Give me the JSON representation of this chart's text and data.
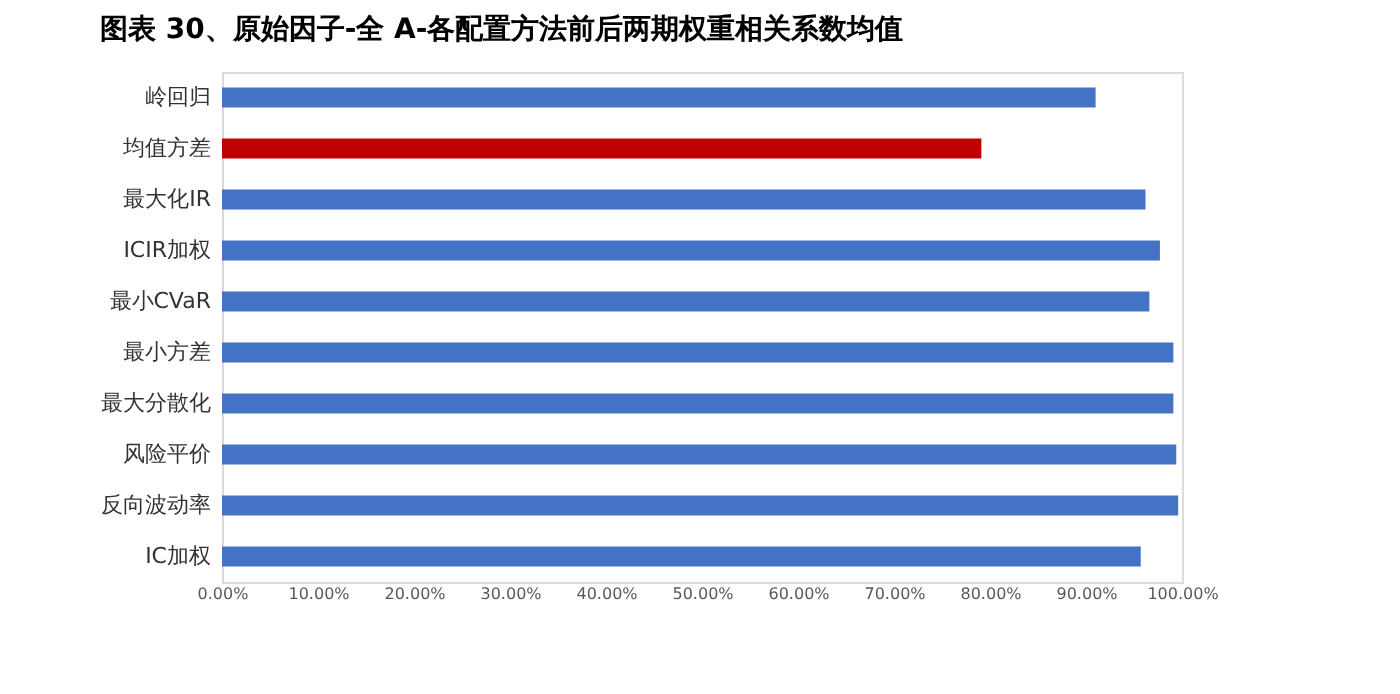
{
  "chart_data": {
    "type": "bar",
    "orientation": "horizontal",
    "title": "图表 30、原始因子-全 A-各配置方法前后两期权重相关系数均值",
    "categories": [
      "岭回归",
      "均值方差",
      "最大化IR",
      "ICIR加权",
      "最小CVaR",
      "最小方差",
      "最大分散化",
      "风险平价",
      "反向波动率",
      "IC加权"
    ],
    "values": [
      0.91,
      0.791,
      0.962,
      0.977,
      0.966,
      0.991,
      0.991,
      0.994,
      0.996,
      0.957
    ],
    "colors": [
      "#4472c4",
      "#c00000",
      "#4472c4",
      "#4472c4",
      "#4472c4",
      "#4472c4",
      "#4472c4",
      "#4472c4",
      "#4472c4",
      "#4472c4"
    ],
    "xlim": [
      0,
      1
    ],
    "xticks": [
      {
        "value": 0,
        "label": "0.00%"
      },
      {
        "value": 0.1,
        "label": "10.00%"
      },
      {
        "value": 0.2,
        "label": "20.00%"
      },
      {
        "value": 0.3,
        "label": "30.00%"
      },
      {
        "value": 0.4,
        "label": "40.00%"
      },
      {
        "value": 0.5,
        "label": "50.00%"
      },
      {
        "value": 0.6,
        "label": "60.00%"
      },
      {
        "value": 0.7,
        "label": "70.00%"
      },
      {
        "value": 0.8,
        "label": "80.00%"
      },
      {
        "value": 0.9,
        "label": "90.00%"
      },
      {
        "value": 1,
        "label": "100.00%"
      }
    ],
    "grid": false
  }
}
